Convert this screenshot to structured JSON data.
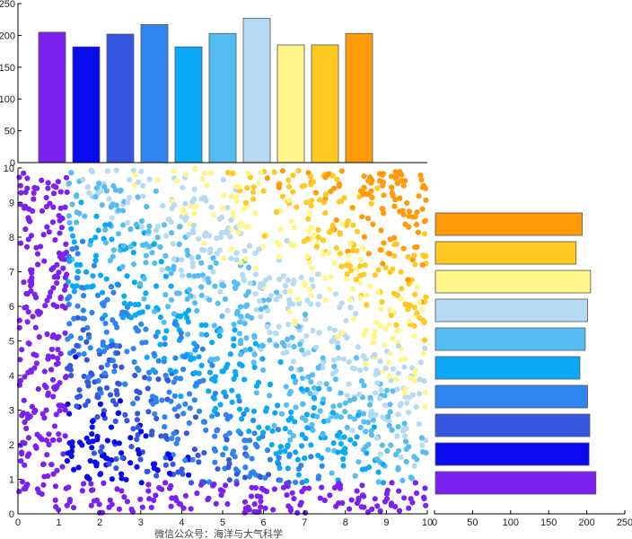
{
  "caption": "微信公众号：海洋与大气科学",
  "colors": [
    "#7b22ee",
    "#0a0aee",
    "#3557e0",
    "#2f84ef",
    "#0aa9f8",
    "#56bdf2",
    "#b4dbf3",
    "#fff689",
    "#ffc922",
    "#ff9a08"
  ],
  "chart_data": [
    {
      "id": "scatter",
      "type": "scatter",
      "title": "",
      "xlabel": "",
      "ylabel": "",
      "xlim": [
        0,
        10
      ],
      "ylim": [
        0,
        10
      ],
      "xticks": [
        0,
        1,
        2,
        3,
        4,
        5,
        6,
        7,
        8,
        9,
        10
      ],
      "yticks": [
        0,
        1,
        2,
        3,
        4,
        5,
        6,
        7,
        8,
        9,
        10
      ],
      "n_points": 2000,
      "color_classes": 10,
      "note": "2000 uniformly random points in [0,10]x[0,10], coloured into 10 classes"
    },
    {
      "id": "top-histogram",
      "type": "bar",
      "orientation": "vertical",
      "categories": [
        "1",
        "2",
        "3",
        "4",
        "5",
        "6",
        "7",
        "8",
        "9",
        "10"
      ],
      "values": [
        205,
        182,
        202,
        217,
        182,
        203,
        227,
        185,
        185,
        203
      ],
      "ylim": [
        0,
        250
      ],
      "yticks": [
        0,
        50,
        100,
        150,
        200,
        250
      ]
    },
    {
      "id": "right-histogram",
      "type": "bar",
      "orientation": "horizontal",
      "categories": [
        "1",
        "2",
        "3",
        "4",
        "5",
        "6",
        "7",
        "8",
        "9",
        "10"
      ],
      "values": [
        212,
        203,
        204,
        201,
        191,
        198,
        201,
        205,
        186,
        194
      ],
      "xlim": [
        0,
        250
      ],
      "xticks": [
        0,
        50,
        100,
        150,
        200,
        250
      ]
    }
  ]
}
